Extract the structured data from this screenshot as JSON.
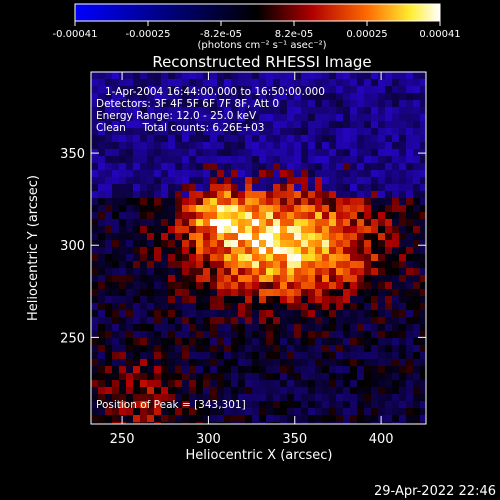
{
  "colorbar": {
    "tick_labels": [
      "-0.00041",
      "-0.00025",
      "-8.2e-05",
      "8.2e-05",
      "0.00025",
      "0.00041"
    ],
    "unit_label": "(photons cm⁻² s⁻¹ asec⁻²)",
    "range": [
      -0.00041,
      0.00041
    ],
    "colormap": [
      "#0000ff",
      "#000000",
      "#aa0000",
      "#ff6600",
      "#ffee00",
      "#ffffff"
    ]
  },
  "chart_data": {
    "type": "heatmap",
    "title": "Reconstructed RHESSI Image",
    "xlabel": "Heliocentric X (arcsec)",
    "ylabel": "Heliocentric Y (arcsec)",
    "xlim": [
      232,
      426
    ],
    "ylim": [
      203,
      394
    ],
    "xticks": [
      250,
      300,
      350,
      400
    ],
    "yticks": [
      250,
      300,
      350
    ],
    "peak": {
      "x": 343,
      "y": 301
    },
    "annotations": {
      "time_range": "1-Apr-2004 16:44:00.000 to 16:50:00.000",
      "detectors": "Detectors: 3F 4F 5F 6F 7F 8F, Att 0",
      "energy_range": "Energy Range: 12.0 - 25.0 keV",
      "method_counts": "Clean     Total counts: 6.26E+03",
      "peak_position": "Position of Peak = [343,301]"
    }
  },
  "timestamp": "29-Apr-2022 22:46"
}
